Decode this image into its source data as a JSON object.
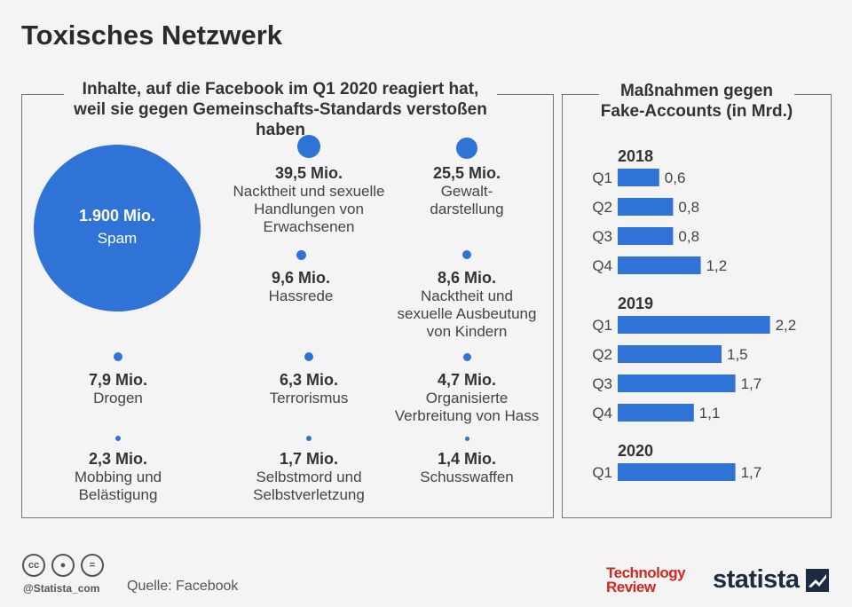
{
  "title": "Toxisches Netzwerk",
  "left_panel": {
    "heading_line1": "Inhalte, auf die Facebook im Q1 2020 reagiert hat,",
    "heading_line2": "weil sie gegen Gemeinschafts-Standards verstoßen haben",
    "spam": {
      "value": "1.900 Mio.",
      "label": "Spam"
    },
    "items": [
      {
        "value": "39,5 Mio.",
        "lines": [
          "Nacktheit und sexuelle",
          "Handlungen von",
          "Erwachsenen"
        ]
      },
      {
        "value": "25,5 Mio.",
        "lines": [
          "Gewalt-",
          "darstellung"
        ]
      },
      {
        "value": "9,6 Mio.",
        "lines": [
          "Hassrede"
        ]
      },
      {
        "value": "8,6 Mio.",
        "lines": [
          "Nacktheit und",
          "sexuelle Ausbeutung",
          "von Kindern"
        ]
      },
      {
        "value": "7,9 Mio.",
        "lines": [
          "Drogen"
        ]
      },
      {
        "value": "6,3 Mio.",
        "lines": [
          "Terrorismus"
        ]
      },
      {
        "value": "4,7 Mio.",
        "lines": [
          "Organisierte",
          "Verbreitung von Hass"
        ]
      },
      {
        "value": "2,3 Mio.",
        "lines": [
          "Mobbing und",
          "Belästigung"
        ]
      },
      {
        "value": "1,7 Mio.",
        "lines": [
          "Selbstmord und",
          "Selbstverletzung"
        ]
      },
      {
        "value": "1,4 Mio.",
        "lines": [
          "Schusswaffen"
        ]
      }
    ]
  },
  "right_panel": {
    "heading_line1": "Maßnahmen gegen",
    "heading_line2": "Fake-Accounts (in Mrd.)"
  },
  "chart_data": [
    {
      "type": "bubble",
      "categories": [
        "Spam",
        "Nacktheit und sexuelle Handlungen von Erwachsenen",
        "Gewaltdarstellung",
        "Hassrede",
        "Nacktheit und sexuelle Ausbeutung von Kindern",
        "Drogen",
        "Terrorismus",
        "Organisierte Verbreitung von Hass",
        "Mobbing und Belästigung",
        "Selbstmord und Selbstverletzung",
        "Schusswaffen"
      ],
      "values": [
        1900,
        39.5,
        25.5,
        9.6,
        8.6,
        7.9,
        6.3,
        4.7,
        2.3,
        1.7,
        1.4
      ],
      "unit": "Mio."
    },
    {
      "type": "bar",
      "orientation": "horizontal",
      "groups": [
        {
          "year": "2018",
          "bars": [
            {
              "label": "Q1",
              "value": 0.6,
              "text": "0,6"
            },
            {
              "label": "Q2",
              "value": 0.8,
              "text": "0,8"
            },
            {
              "label": "Q3",
              "value": 0.8,
              "text": "0,8"
            },
            {
              "label": "Q4",
              "value": 1.2,
              "text": "1,2"
            }
          ]
        },
        {
          "year": "2019",
          "bars": [
            {
              "label": "Q1",
              "value": 2.2,
              "text": "2,2"
            },
            {
              "label": "Q2",
              "value": 1.5,
              "text": "1,5"
            },
            {
              "label": "Q3",
              "value": 1.7,
              "text": "1,7"
            },
            {
              "label": "Q4",
              "value": 1.1,
              "text": "1,1"
            }
          ]
        },
        {
          "year": "2020",
          "bars": [
            {
              "label": "Q1",
              "value": 1.7,
              "text": "1,7"
            }
          ]
        }
      ],
      "color": "#2f73d6"
    }
  ],
  "footer": {
    "handle": "@Statista_com",
    "source": "Quelle: Facebook",
    "partner_line1": "Technology",
    "partner_line2": "Review",
    "brand": "statista"
  },
  "colors": {
    "accent": "#2f73d6",
    "brand": "#1c2b3f",
    "partner": "#d5261f"
  },
  "icons": [
    "cc-icon",
    "by-icon",
    "nd-icon",
    "statista-logo-icon"
  ]
}
